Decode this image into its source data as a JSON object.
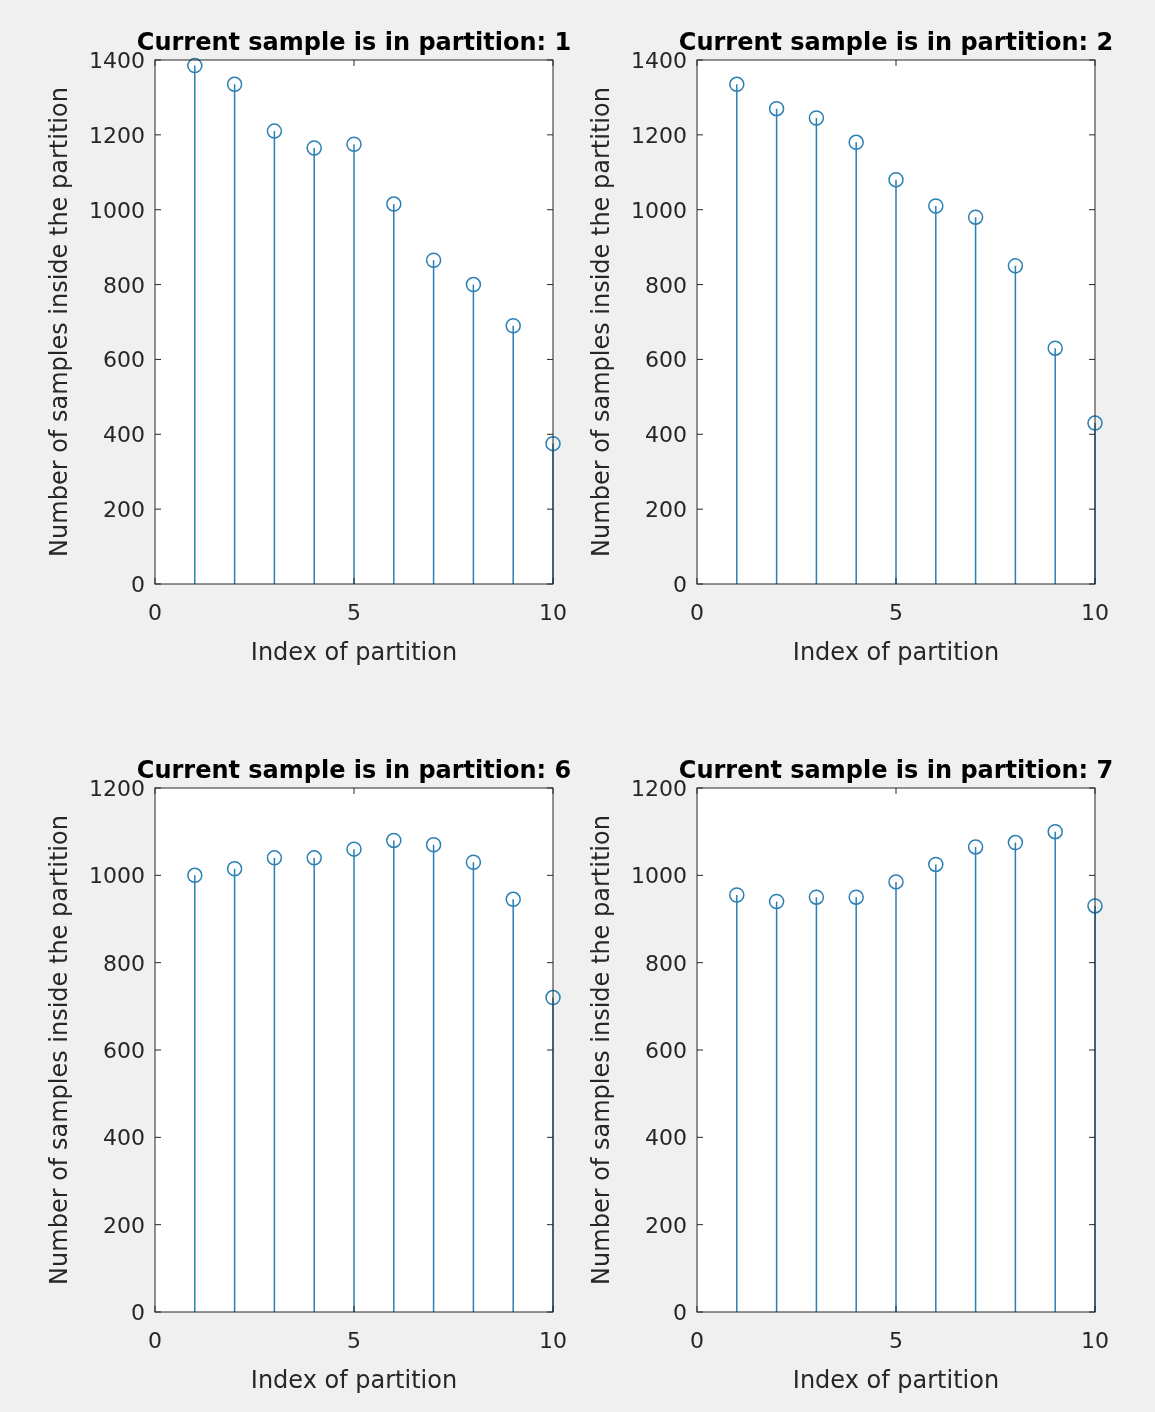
{
  "chart_data": [
    {
      "type": "lollipop",
      "title": "Current sample is in partition: 1",
      "xlabel": "Index of partition",
      "ylabel": "Number of samples inside the partition",
      "x": [
        1,
        2,
        3,
        4,
        5,
        6,
        7,
        8,
        9,
        10
      ],
      "values": [
        1385,
        1335,
        1210,
        1165,
        1175,
        1015,
        865,
        800,
        690,
        375
      ],
      "color": "#2a7fb4",
      "marker": "circle",
      "xlim": [
        0,
        10
      ],
      "xticks": [
        0,
        5,
        10
      ],
      "ylim": [
        0,
        1400
      ],
      "yticks": [
        0,
        200,
        400,
        600,
        800,
        1000,
        1200,
        1400
      ]
    },
    {
      "type": "lollipop",
      "title": "Current sample is in partition: 2",
      "xlabel": "Index of partition",
      "ylabel": "Number of samples inside the partition",
      "x": [
        1,
        2,
        3,
        4,
        5,
        6,
        7,
        8,
        9,
        10
      ],
      "values": [
        1335,
        1270,
        1245,
        1180,
        1080,
        1010,
        980,
        850,
        630,
        430
      ],
      "color": "#2a7fb4",
      "marker": "circle",
      "xlim": [
        0,
        10
      ],
      "xticks": [
        0,
        5,
        10
      ],
      "ylim": [
        0,
        1400
      ],
      "yticks": [
        0,
        200,
        400,
        600,
        800,
        1000,
        1200,
        1400
      ]
    },
    {
      "type": "lollipop",
      "title": "Current sample is in partition: 6",
      "xlabel": "Index of partition",
      "ylabel": "Number of samples inside the partition",
      "x": [
        1,
        2,
        3,
        4,
        5,
        6,
        7,
        8,
        9,
        10
      ],
      "values": [
        1000,
        1015,
        1040,
        1040,
        1060,
        1080,
        1070,
        1030,
        945,
        720
      ],
      "color": "#2a7fb4",
      "marker": "circle",
      "xlim": [
        0,
        10
      ],
      "xticks": [
        0,
        5,
        10
      ],
      "ylim": [
        0,
        1200
      ],
      "yticks": [
        0,
        200,
        400,
        600,
        800,
        1000,
        1200
      ]
    },
    {
      "type": "lollipop",
      "title": "Current sample is in partition: 7",
      "xlabel": "Index of partition",
      "ylabel": "Number of samples inside the partition",
      "x": [
        1,
        2,
        3,
        4,
        5,
        6,
        7,
        8,
        9,
        10
      ],
      "values": [
        955,
        940,
        950,
        950,
        985,
        1025,
        1065,
        1075,
        1100,
        930
      ],
      "color": "#2a7fb4",
      "marker": "circle",
      "xlim": [
        0,
        10
      ],
      "xticks": [
        0,
        5,
        10
      ],
      "ylim": [
        0,
        1200
      ],
      "yticks": [
        0,
        200,
        400,
        600,
        800,
        1000,
        1200
      ]
    }
  ]
}
